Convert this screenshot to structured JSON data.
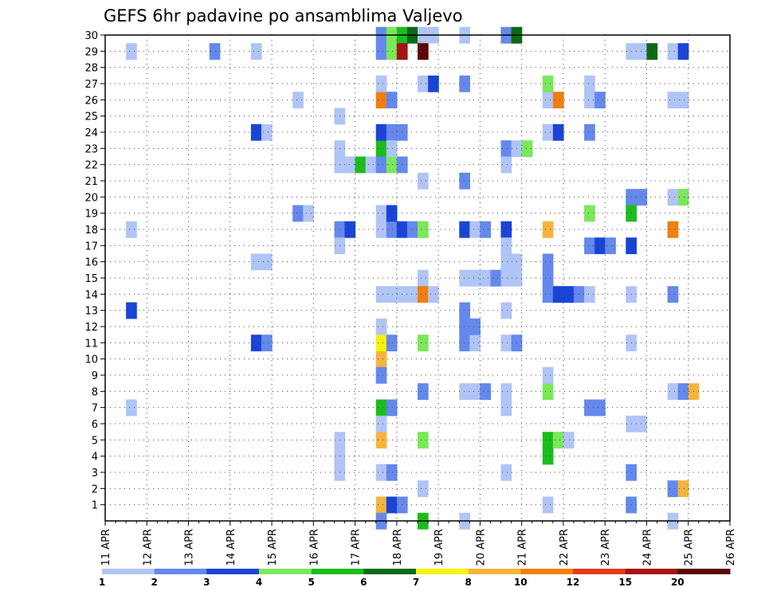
{
  "chart_data": {
    "type": "heatmap",
    "title": "GEFS 6hr padavine po ansamblima Valjevo",
    "x_tick_labels": [
      "11 APR",
      "12 APR",
      "13 APR",
      "14 APR",
      "15 APR",
      "16 APR",
      "17 APR",
      "18 APR",
      "19 APR",
      "20 APR",
      "21 APR",
      "22 APR",
      "23 APR",
      "24 APR",
      "25 APR",
      "26 APR"
    ],
    "y_tick_labels": [
      "1",
      "2",
      "3",
      "4",
      "5",
      "6",
      "7",
      "8",
      "9",
      "10",
      "11",
      "12",
      "13",
      "14",
      "15",
      "16",
      "17",
      "18",
      "19",
      "20",
      "21",
      "22",
      "23",
      "24",
      "25",
      "26",
      "27",
      "28",
      "29",
      "30"
    ],
    "x_unit": "6-hour step from 11 APR 00",
    "y_unit": "ensemble member",
    "grid": "dotted",
    "colorbar": {
      "position": "bottom",
      "labels": [
        "1",
        "2",
        "3",
        "4",
        "5",
        "6",
        "7",
        "8",
        "10",
        "12",
        "15",
        "20"
      ],
      "colors": [
        "#b0c4f6",
        "#6488ec",
        "#1a44d8",
        "#7ae85a",
        "#1cbc1c",
        "#0b6a14",
        "#f6f20e",
        "#f6b43c",
        "#f27e0e",
        "#e23c18",
        "#a81212",
        "#5e0606"
      ]
    },
    "cells": [
      {
        "day": "12 APR",
        "member": 29,
        "level": 1
      },
      {
        "day": "12 APR",
        "member": 18,
        "level": 1
      },
      {
        "day": "12 APR",
        "member": 13,
        "level": 3
      },
      {
        "day": "12 APR",
        "member": 7,
        "level": 1
      },
      {
        "day": "14 APR",
        "member": 29,
        "level": 2
      },
      {
        "day": "15 APR",
        "member": 24,
        "level": 3
      },
      {
        "day": "15 APR",
        "member": 24,
        "level": 1
      },
      {
        "day": "15 APR",
        "member": 16,
        "level": 1
      },
      {
        "day": "15 APR",
        "member": 16,
        "level": 1
      },
      {
        "day": "15 APR",
        "member": 29,
        "level": 1
      },
      {
        "day": "15 APR",
        "member": 11,
        "level": 3
      },
      {
        "day": "15 APR",
        "member": 11,
        "level": 2
      },
      {
        "day": "16 APR",
        "member": 26,
        "level": 1
      },
      {
        "day": "16 APR",
        "member": 19,
        "level": 2
      },
      {
        "day": "16 APR",
        "member": 19,
        "level": 1
      },
      {
        "day": "17 APR",
        "member": 22,
        "level": 1
      },
      {
        "day": "17 APR",
        "member": 22,
        "level": 1
      },
      {
        "day": "17 APR",
        "member": 3,
        "level": 1
      },
      {
        "day": "17 APR",
        "member": 22,
        "level": 5
      },
      {
        "day": "17 APR",
        "member": 18,
        "level": 2
      },
      {
        "day": "17 APR",
        "member": 5,
        "level": 1
      },
      {
        "day": "17 APR",
        "member": 22,
        "level": 1
      },
      {
        "day": "17 APR",
        "member": 23,
        "level": 1
      },
      {
        "day": "17 APR",
        "member": 25,
        "level": 1
      },
      {
        "day": "17 APR",
        "member": 18,
        "level": 3
      },
      {
        "day": "17 APR",
        "member": 17,
        "level": 1
      },
      {
        "day": "17 APR",
        "member": 4,
        "level": 1
      },
      {
        "day": "18 APR",
        "member": 30,
        "level": 2
      },
      {
        "day": "18 APR",
        "member": 29,
        "level": 2
      },
      {
        "day": "18 APR",
        "member": 26,
        "level": 9
      },
      {
        "day": "18 APR",
        "member": 23,
        "level": 5
      },
      {
        "day": "18 APR",
        "member": 18,
        "level": 1
      },
      {
        "day": "18 APR",
        "member": 14,
        "level": 1
      },
      {
        "day": "18 APR",
        "member": 10,
        "level": 8
      },
      {
        "day": "18 APR",
        "member": 9,
        "level": 2
      },
      {
        "day": "18 APR",
        "member": 5,
        "level": 8
      },
      {
        "day": "18 APR",
        "member": 3,
        "level": 1
      },
      {
        "day": "18 APR",
        "member": 30,
        "level": 4
      },
      {
        "day": "18 APR",
        "member": 29,
        "level": 4
      },
      {
        "day": "18 APR",
        "member": 26,
        "level": 2
      },
      {
        "day": "18 APR",
        "member": 24,
        "level": 3
      },
      {
        "day": "18 APR",
        "member": 18,
        "level": 2
      },
      {
        "day": "18 APR",
        "member": 7,
        "level": 5
      },
      {
        "day": "18 APR",
        "member": 27,
        "level": 1
      },
      {
        "day": "18 APR",
        "member": 24,
        "level": 2
      },
      {
        "day": "18 APR",
        "member": 22,
        "level": 2
      },
      {
        "day": "18 APR",
        "member": 19,
        "level": 1
      },
      {
        "day": "18 APR",
        "member": 18,
        "level": 3
      },
      {
        "day": "18 APR",
        "member": 14,
        "level": 1
      },
      {
        "day": "18 APR",
        "member": 7,
        "level": 2
      },
      {
        "day": "18 APR",
        "member": 1,
        "level": 8
      },
      {
        "day": "18 APR",
        "member": 30,
        "level": 5
      },
      {
        "day": "18 APR",
        "member": 24,
        "level": 2
      },
      {
        "day": "18 APR",
        "member": 22,
        "level": 4
      },
      {
        "day": "18 APR",
        "member": 19,
        "level": 3
      },
      {
        "day": "18 APR",
        "member": 18,
        "level": 2
      },
      {
        "day": "18 APR",
        "member": 14,
        "level": 1
      },
      {
        "day": "18 APR",
        "member": 12,
        "level": 1
      },
      {
        "day": "18 APR",
        "member": 11,
        "level": 7
      },
      {
        "day": "18 APR",
        "member": 6,
        "level": 1
      },
      {
        "day": "18 APR",
        "member": 1,
        "level": 3
      },
      {
        "day": "18 APR",
        "member": 30,
        "level": 6
      },
      {
        "day": "18 APR",
        "member": 29,
        "level": 11
      },
      {
        "day": "18 APR",
        "member": 23,
        "level": 1
      },
      {
        "day": "18 APR",
        "member": 22,
        "level": 2
      },
      {
        "day": "18 APR",
        "member": 18,
        "level": 1
      },
      {
        "day": "18 APR",
        "member": 14,
        "level": 1
      },
      {
        "day": "18 APR",
        "member": 11,
        "level": 2
      },
      {
        "day": "18 APR",
        "member": 3,
        "level": 2
      },
      {
        "day": "18 APR",
        "member": 1,
        "level": 2
      },
      {
        "day": "18 APR",
        "member": 0,
        "level": 2
      },
      {
        "day": "19 APR",
        "member": 30,
        "level": 1
      },
      {
        "day": "19 APR",
        "member": 29,
        "level": 12
      },
      {
        "day": "19 APR",
        "member": 18,
        "level": 4
      },
      {
        "day": "19 APR",
        "member": 15,
        "level": 1
      },
      {
        "day": "19 APR",
        "member": 14,
        "level": 9
      },
      {
        "day": "19 APR",
        "member": 11,
        "level": 4
      },
      {
        "day": "19 APR",
        "member": 5,
        "level": 4
      },
      {
        "day": "19 APR",
        "member": 0,
        "level": 5
      },
      {
        "day": "19 APR",
        "member": 27,
        "level": 1
      },
      {
        "day": "19 APR",
        "member": 14,
        "level": 1
      },
      {
        "day": "19 APR",
        "member": 8,
        "level": 2
      },
      {
        "day": "19 APR",
        "member": 30,
        "level": 1
      },
      {
        "day": "19 APR",
        "member": 27,
        "level": 3
      },
      {
        "day": "19 APR",
        "member": 21,
        "level": 1
      },
      {
        "day": "19 APR",
        "member": 2,
        "level": 1
      },
      {
        "day": "20 APR",
        "member": 21,
        "level": 2
      },
      {
        "day": "20 APR",
        "member": 18,
        "level": 3
      },
      {
        "day": "20 APR",
        "member": 15,
        "level": 1
      },
      {
        "day": "20 APR",
        "member": 13,
        "level": 2
      },
      {
        "day": "20 APR",
        "member": 12,
        "level": 2
      },
      {
        "day": "20 APR",
        "member": 0,
        "level": 1
      },
      {
        "day": "20 APR",
        "member": 27,
        "level": 2
      },
      {
        "day": "20 APR",
        "member": 18,
        "level": 1
      },
      {
        "day": "20 APR",
        "member": 15,
        "level": 1
      },
      {
        "day": "20 APR",
        "member": 8,
        "level": 1
      },
      {
        "day": "20 APR",
        "member": 18,
        "level": 2
      },
      {
        "day": "20 APR",
        "member": 11,
        "level": 2
      },
      {
        "day": "20 APR",
        "member": 30,
        "level": 1
      },
      {
        "day": "20 APR",
        "member": 15,
        "level": 1
      },
      {
        "day": "20 APR",
        "member": 11,
        "level": 1
      },
      {
        "day": "20 APR",
        "member": 8,
        "level": 1
      },
      {
        "day": "20 APR",
        "member": 15,
        "level": 2
      },
      {
        "day": "20 APR",
        "member": 12,
        "level": 2
      },
      {
        "day": "20 APR",
        "member": 8,
        "level": 2
      },
      {
        "day": "21 APR",
        "member": 23,
        "level": 2
      },
      {
        "day": "21 APR",
        "member": 30,
        "level": 2
      },
      {
        "day": "21 APR",
        "member": 23,
        "level": 1
      },
      {
        "day": "21 APR",
        "member": 22,
        "level": 1
      },
      {
        "day": "21 APR",
        "member": 16,
        "level": 1
      },
      {
        "day": "21 APR",
        "member": 15,
        "level": 1
      },
      {
        "day": "21 APR",
        "member": 11,
        "level": 1
      },
      {
        "day": "21 APR",
        "member": 30,
        "level": 6
      },
      {
        "day": "21 APR",
        "member": 23,
        "level": 4
      },
      {
        "day": "21 APR",
        "member": 18,
        "level": 3
      },
      {
        "day": "21 APR",
        "member": 17,
        "level": 1
      },
      {
        "day": "21 APR",
        "member": 16,
        "level": 1
      },
      {
        "day": "21 APR",
        "member": 15,
        "level": 1
      },
      {
        "day": "21 APR",
        "member": 13,
        "level": 1
      },
      {
        "day": "21 APR",
        "member": 11,
        "level": 2
      },
      {
        "day": "21 APR",
        "member": 8,
        "level": 1
      },
      {
        "day": "21 APR",
        "member": 7,
        "level": 1
      },
      {
        "day": "21 APR",
        "member": 3,
        "level": 1
      },
      {
        "day": "22 APR",
        "member": 18,
        "level": 8
      },
      {
        "day": "22 APR",
        "member": 14,
        "level": 2
      },
      {
        "day": "22 APR",
        "member": 8,
        "level": 4
      },
      {
        "day": "22 APR",
        "member": 5,
        "level": 5
      },
      {
        "day": "22 APR",
        "member": 4,
        "level": 5
      },
      {
        "day": "22 APR",
        "member": 26,
        "level": 1
      },
      {
        "day": "22 APR",
        "member": 14,
        "level": 3
      },
      {
        "day": "22 APR",
        "member": 5,
        "level": 4
      },
      {
        "day": "22 APR",
        "member": 24,
        "level": 1
      },
      {
        "day": "22 APR",
        "member": 14,
        "level": 3
      },
      {
        "day": "22 APR",
        "member": 5,
        "level": 1
      },
      {
        "day": "22 APR",
        "member": 1,
        "level": 1
      },
      {
        "day": "22 APR",
        "member": 27,
        "level": 4
      },
      {
        "day": "22 APR",
        "member": 26,
        "level": 9
      },
      {
        "day": "22 APR",
        "member": 24,
        "level": 3
      },
      {
        "day": "22 APR",
        "member": 16,
        "level": 2
      },
      {
        "day": "22 APR",
        "member": 15,
        "level": 2
      },
      {
        "day": "22 APR",
        "member": 14,
        "level": 2
      },
      {
        "day": "22 APR",
        "member": 9,
        "level": 1
      },
      {
        "day": "23 APR",
        "member": 27,
        "level": 1
      },
      {
        "day": "23 APR",
        "member": 26,
        "level": 1
      },
      {
        "day": "23 APR",
        "member": 24,
        "level": 2
      },
      {
        "day": "23 APR",
        "member": 19,
        "level": 4
      },
      {
        "day": "23 APR",
        "member": 26,
        "level": 2
      },
      {
        "day": "23 APR",
        "member": 17,
        "level": 2
      },
      {
        "day": "23 APR",
        "member": 17,
        "level": 3
      },
      {
        "day": "23 APR",
        "member": 17,
        "level": 2
      },
      {
        "day": "23 APR",
        "member": 14,
        "level": 1
      },
      {
        "day": "23 APR",
        "member": 7,
        "level": 2
      },
      {
        "day": "23 APR",
        "member": 7,
        "level": 2
      },
      {
        "day": "24 APR",
        "member": 29,
        "level": 1
      },
      {
        "day": "24 APR",
        "member": 20,
        "level": 2
      },
      {
        "day": "24 APR",
        "member": 17,
        "level": 3
      },
      {
        "day": "24 APR",
        "member": 11,
        "level": 1
      },
      {
        "day": "24 APR",
        "member": 6,
        "level": 1
      },
      {
        "day": "24 APR",
        "member": 3,
        "level": 2
      },
      {
        "day": "24 APR",
        "member": 1,
        "level": 2
      },
      {
        "day": "24 APR",
        "member": 29,
        "level": 1
      },
      {
        "day": "24 APR",
        "member": 20,
        "level": 2
      },
      {
        "day": "24 APR",
        "member": 14,
        "level": 1
      },
      {
        "day": "24 APR",
        "member": 6,
        "level": 1
      },
      {
        "day": "24 APR",
        "member": 29,
        "level": 6
      },
      {
        "day": "24 APR",
        "member": 19,
        "level": 5
      },
      {
        "day": "25 APR",
        "member": 8,
        "level": 1
      },
      {
        "day": "25 APR",
        "member": 0,
        "level": 1
      },
      {
        "day": "25 APR",
        "member": 8,
        "level": 2
      },
      {
        "day": "25 APR",
        "member": 29,
        "level": 1
      },
      {
        "day": "25 APR",
        "member": 26,
        "level": 1
      },
      {
        "day": "25 APR",
        "member": 20,
        "level": 1
      },
      {
        "day": "25 APR",
        "member": 2,
        "level": 2
      },
      {
        "day": "25 APR",
        "member": 29,
        "level": 3
      },
      {
        "day": "25 APR",
        "member": 26,
        "level": 1
      },
      {
        "day": "25 APR",
        "member": 20,
        "level": 4
      },
      {
        "day": "25 APR",
        "member": 18,
        "level": 9
      },
      {
        "day": "25 APR",
        "member": 14,
        "level": 2
      },
      {
        "day": "25 APR",
        "member": 8,
        "level": 8
      },
      {
        "day": "25 APR",
        "member": 2,
        "level": 8
      }
    ]
  }
}
